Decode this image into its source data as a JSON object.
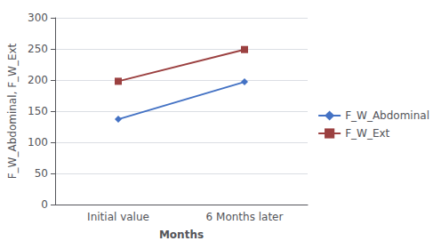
{
  "chart_data": {
    "type": "line",
    "categories": [
      "Initial value",
      "6 Months later"
    ],
    "series": [
      {
        "name": "F_W_Abdominal",
        "color": "#4472C4",
        "marker": "diamond",
        "values": [
          137,
          197
        ]
      },
      {
        "name": "F_W_Ext",
        "color": "#9B4040",
        "marker": "square",
        "values": [
          198,
          249
        ]
      }
    ],
    "xlabel": "Months",
    "ylabel": "F_W_Abdominal, F_W_Ext",
    "ylim": [
      0,
      300
    ],
    "yticks": [
      0,
      50,
      100,
      150,
      200,
      250,
      300
    ],
    "grid": true,
    "legend": "right"
  }
}
